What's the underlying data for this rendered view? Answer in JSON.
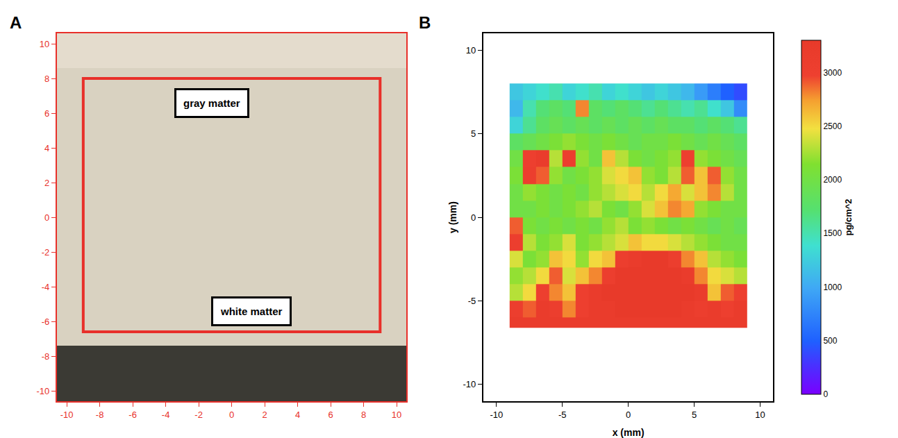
{
  "chart_data": [
    {
      "type": "image",
      "panel": "A",
      "xlim": [
        -10.6,
        10.6
      ],
      "ylim": [
        -10.6,
        10.6
      ],
      "xticks": [
        -10,
        -8,
        -6,
        -4,
        -2,
        0,
        2,
        4,
        6,
        8,
        10
      ],
      "yticks": [
        -10,
        -8,
        -6,
        -4,
        -2,
        0,
        2,
        4,
        6,
        8,
        10
      ],
      "region": {
        "x": [
          -9,
          9
        ],
        "y": [
          -6.6,
          8
        ]
      },
      "annotations": [
        "gray matter",
        "white matter"
      ],
      "grid": false
    },
    {
      "type": "heatmap",
      "panel": "B",
      "x_label": "x (mm)",
      "y_label": "y (mm)",
      "xlim": [
        -11,
        11
      ],
      "ylim": [
        -11,
        11
      ],
      "xticks": [
        -10,
        -5,
        0,
        5,
        10
      ],
      "yticks": [
        -10,
        -5,
        0,
        5,
        10
      ],
      "x": [
        -9,
        -8,
        -7,
        -6,
        -5,
        -4,
        -3,
        -2,
        -1,
        0,
        1,
        2,
        3,
        4,
        5,
        6,
        7,
        8,
        9
      ],
      "y": [
        -6.6,
        -6,
        -5,
        -4,
        -3,
        -2,
        -1,
        0,
        1,
        2,
        3,
        4,
        5,
        6,
        7,
        8
      ],
      "cells": [
        [
          3200,
          3200,
          3200,
          3200,
          3200,
          3200,
          3200,
          3200,
          3200,
          3200,
          3200,
          3200,
          3200,
          3200,
          3200,
          3200,
          3200,
          3200
        ],
        [
          3100,
          2900,
          3200,
          3100,
          2800,
          3000,
          3200,
          3200,
          3300,
          3300,
          3300,
          3300,
          3300,
          3200,
          3100,
          3200,
          3000,
          3200
        ],
        [
          2300,
          2500,
          3000,
          2800,
          2600,
          3000,
          3200,
          3300,
          3300,
          3300,
          3300,
          3300,
          3300,
          3300,
          3200,
          2600,
          2900,
          3000
        ],
        [
          2200,
          2300,
          2500,
          2900,
          2400,
          2600,
          2800,
          3100,
          3300,
          3300,
          3300,
          3300,
          3300,
          3200,
          2800,
          2500,
          2400,
          2300
        ],
        [
          2400,
          2100,
          2200,
          2600,
          2500,
          2200,
          2500,
          2600,
          3100,
          3200,
          3300,
          3300,
          3100,
          2800,
          2600,
          2300,
          2200,
          2100
        ],
        [
          3100,
          2300,
          2100,
          2200,
          2400,
          2100,
          2200,
          2300,
          2400,
          2600,
          2500,
          2500,
          2400,
          2300,
          2200,
          2100,
          2000,
          2000
        ],
        [
          2900,
          2100,
          2000,
          2100,
          2000,
          2100,
          2000,
          2200,
          2300,
          2100,
          2200,
          2100,
          2000,
          2100,
          2000,
          1900,
          2000,
          1900
        ],
        [
          2000,
          2000,
          2100,
          2000,
          2100,
          2200,
          2300,
          2100,
          2000,
          2200,
          2400,
          2600,
          2800,
          2700,
          2200,
          2100,
          2000,
          2000
        ],
        [
          2000,
          2200,
          2100,
          2000,
          2100,
          2000,
          2200,
          2300,
          2400,
          2500,
          2300,
          2500,
          2700,
          2400,
          2600,
          2800,
          2300,
          2000
        ],
        [
          2100,
          3100,
          2900,
          2200,
          2000,
          2100,
          2200,
          2400,
          2500,
          2600,
          2200,
          2100,
          2300,
          2900,
          2600,
          2900,
          2200,
          2000
        ],
        [
          2000,
          3000,
          3200,
          2300,
          3100,
          2200,
          2000,
          2600,
          2300,
          2100,
          2000,
          2100,
          2200,
          3000,
          2200,
          2100,
          2000,
          1900
        ],
        [
          1800,
          1900,
          2000,
          2100,
          2200,
          2100,
          2000,
          2100,
          2000,
          1900,
          2000,
          2000,
          2100,
          2000,
          1900,
          2000,
          1900,
          1800
        ],
        [
          1300,
          1600,
          1800,
          1900,
          1800,
          1900,
          1800,
          1900,
          1800,
          1900,
          1800,
          1900,
          1800,
          1800,
          1700,
          1800,
          1700,
          1600
        ],
        [
          1100,
          1500,
          1700,
          1800,
          1700,
          2800,
          1800,
          1700,
          1800,
          1700,
          1600,
          1700,
          1600,
          1500,
          1600,
          1400,
          1200,
          800
        ],
        [
          1200,
          1300,
          1400,
          1500,
          1300,
          1400,
          1500,
          1300,
          1400,
          1300,
          1200,
          1300,
          1200,
          1100,
          900,
          700,
          500,
          400
        ]
      ],
      "colorbar_title": "pg/cm^2",
      "zlim": [
        0,
        3300
      ],
      "zticks": [
        0,
        500,
        1000,
        1500,
        2000,
        2500,
        3000
      ],
      "grid": false
    }
  ]
}
